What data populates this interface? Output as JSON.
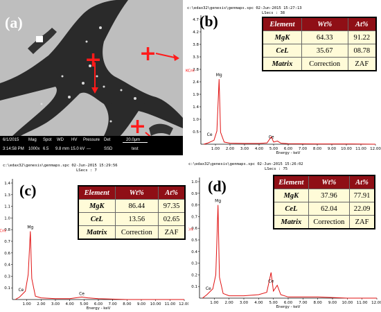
{
  "panels": {
    "a": {
      "label": "(a)",
      "info_top": [
        "6/1/2015",
        "Mag",
        "Spot",
        "WD",
        "HV",
        "Pressure",
        "Det"
      ],
      "info_bottom": [
        "3:14:58 PM",
        "1000x",
        "6.5",
        "9.8 mm",
        "15.0 kV",
        "---",
        "SSD"
      ],
      "scale_label": "20.0μm",
      "scale_sub": "test"
    },
    "b": {
      "label": "(b)",
      "file_header": "c:\\edax32\\genesis\\genmaps.spc  02-Jun-2015 15:27:13",
      "lsecs": "LSecs : 38",
      "y_unit": "KCnt",
      "x_axis_label": "Energy - keV",
      "table": {
        "header": [
          "Element",
          "Wt%",
          "At%"
        ],
        "rows": [
          [
            "MgK",
            "64.33",
            "91.22"
          ],
          [
            "CeL",
            "35.67",
            "08.78"
          ],
          [
            "Matrix",
            "Correction",
            "ZAF"
          ]
        ]
      },
      "peak_labels": [
        "Mg",
        "Ce",
        "Ce"
      ]
    },
    "c": {
      "label": "(c)",
      "file_header": "c:\\edax32\\genesis\\genmaps.spc  02-Jun-2015 15:29:56",
      "lsecs": "LSecs : 7",
      "y_unit": "KCnt",
      "x_axis_label": "Energy - keV",
      "table": {
        "header": [
          "Element",
          "Wt%",
          "At%"
        ],
        "rows": [
          [
            "MgK",
            "86.44",
            "97.35"
          ],
          [
            "CeL",
            "13.56",
            "02.65"
          ],
          [
            "Matrix",
            "Correction",
            "ZAF"
          ]
        ]
      },
      "peak_labels": [
        "Mg",
        "Ce",
        "Ce"
      ]
    },
    "d": {
      "label": "(d)",
      "file_header": "c:\\edax32\\genesis\\genmaps.spc  02-Jun-2015 15:26:02",
      "lsecs": "LSecs : 75",
      "y_unit": "KCnt",
      "x_axis_label": "Energy - keV",
      "table": {
        "header": [
          "Element",
          "Wt%",
          "At%"
        ],
        "rows": [
          [
            "MgK",
            "37.96",
            "77.91"
          ],
          [
            "CeL",
            "62.04",
            "22.09"
          ],
          [
            "Matrix",
            "Correction",
            "ZAF"
          ]
        ]
      },
      "peak_labels": [
        "Mg",
        "Ce",
        "Ce"
      ]
    }
  },
  "chart_data": [
    {
      "type": "line",
      "panel": "b",
      "x": [
        0.2,
        0.5,
        0.9,
        1.1,
        1.25,
        1.35,
        1.6,
        2.0,
        3.0,
        4.0,
        4.55,
        4.84,
        5.0,
        5.26,
        5.5,
        6.0,
        8.0,
        10.0,
        12.0
      ],
      "y": [
        0.0,
        0.05,
        0.15,
        0.5,
        2.45,
        0.45,
        0.08,
        0.04,
        0.03,
        0.03,
        0.05,
        0.28,
        0.08,
        0.12,
        0.04,
        0.02,
        0.01,
        0.01,
        0.0
      ],
      "xlim": [
        0,
        12
      ],
      "ylim": [
        0,
        4.7
      ],
      "xticks": [
        "1.00",
        "2.00",
        "3.00",
        "4.00",
        "5.00",
        "6.00",
        "7.00",
        "8.00",
        "9.00",
        "10.00",
        "11.00",
        "12.00"
      ],
      "yticks": [
        "0.5",
        "1.0",
        "1.4",
        "1.9",
        "2.4",
        "2.8",
        "3.3",
        "3.8",
        "4.2",
        "4.7"
      ],
      "xlabel": "Energy - keV",
      "ylabel": "KCnt"
    },
    {
      "type": "line",
      "panel": "c",
      "x": [
        0.2,
        0.5,
        0.9,
        1.1,
        1.25,
        1.35,
        1.6,
        2.0,
        3.0,
        4.0,
        4.84,
        5.26,
        6.0,
        8.0,
        10.0,
        12.0
      ],
      "y": [
        0.0,
        0.03,
        0.1,
        0.3,
        0.82,
        0.25,
        0.04,
        0.02,
        0.01,
        0.01,
        0.03,
        0.02,
        0.01,
        0.0,
        0.0,
        0.0
      ],
      "xlim": [
        0,
        12
      ],
      "ylim": [
        0,
        1.4
      ],
      "xticks": [
        "1.00",
        "2.00",
        "3.00",
        "4.00",
        "5.00",
        "6.00",
        "7.00",
        "8.00",
        "9.00",
        "10.00",
        "11.00",
        "12.00"
      ],
      "yticks": [
        "0.1",
        "0.3",
        "0.4",
        "0.6",
        "0.7",
        "0.8",
        "1.0",
        "1.1",
        "1.3",
        "1.4"
      ],
      "xlabel": "Energy - keV",
      "ylabel": "KCnt"
    },
    {
      "type": "line",
      "panel": "d",
      "x": [
        0.2,
        0.5,
        0.9,
        1.1,
        1.25,
        1.35,
        1.6,
        2.0,
        3.0,
        4.0,
        4.55,
        4.84,
        5.0,
        5.26,
        5.5,
        6.0,
        8.0,
        10.0,
        12.0
      ],
      "y": [
        0.0,
        0.03,
        0.08,
        0.2,
        0.8,
        0.18,
        0.04,
        0.02,
        0.02,
        0.03,
        0.05,
        0.22,
        0.06,
        0.11,
        0.03,
        0.01,
        0.01,
        0.0,
        0.0
      ],
      "xlim": [
        0,
        12
      ],
      "ylim": [
        0,
        1.0
      ],
      "xticks": [
        "1.00",
        "2.00",
        "3.00",
        "4.00",
        "5.00",
        "6.00",
        "7.00",
        "8.00",
        "9.00",
        "10.00",
        "11.00",
        "12.00"
      ],
      "yticks": [
        "0.1",
        "0.2",
        "0.3",
        "0.4",
        "0.5",
        "0.6",
        "0.7",
        "0.8",
        "0.9",
        "1.0"
      ],
      "xlabel": "Energy - keV",
      "ylabel": "KCnt"
    }
  ]
}
